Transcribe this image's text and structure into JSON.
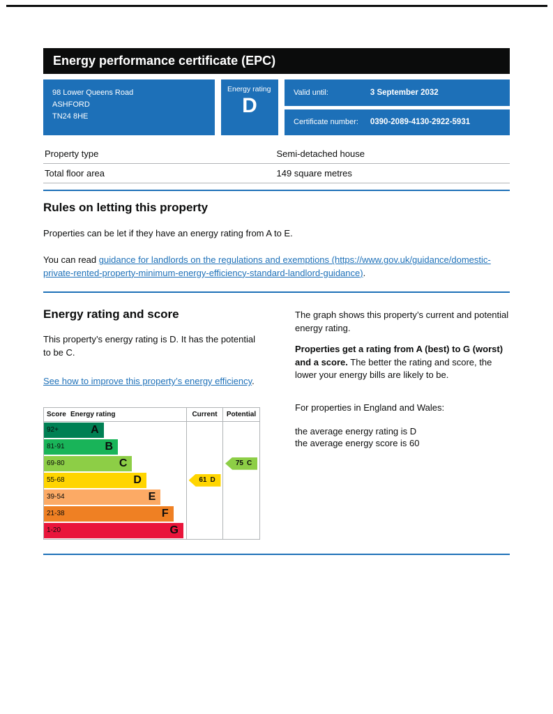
{
  "colors": {
    "brand_blue": "#1d70b8",
    "text_black": "#0b0c0c",
    "border_grey": "#b1b4b6"
  },
  "header": {
    "title": "Energy performance certificate (EPC)"
  },
  "certificate": {
    "address_lines": [
      "98 Lower Queens Road",
      "ASHFORD",
      "TN24 8HE"
    ],
    "energy_rating_label": "Energy rating",
    "energy_rating": "D",
    "valid_until_label": "Valid until:",
    "valid_until_value": "3 September 2032",
    "certificate_number_label": "Certificate number:",
    "certificate_number_value": "0390-2089-4130-2922-5931"
  },
  "summary": {
    "rows": [
      {
        "label": "Property type",
        "value": "Semi-detached house"
      },
      {
        "label": "Total floor area",
        "value": "149 square metres"
      }
    ]
  },
  "rules": {
    "heading": "Rules on letting this property",
    "paragraph1": "Properties can be let if they have an energy rating from A to E.",
    "paragraph2_prefix": "You can read ",
    "paragraph2_link": "guidance for landlords on the regulations and exemptions (https://www.gov.uk/guidance/domestic-private-rented-property-minimum-energy-efficiency-standard-landlord-guidance)",
    "paragraph2_suffix": "."
  },
  "rating_section": {
    "heading": "Energy rating and score",
    "paragraph1": "This property’s energy rating is D. It has the potential to be C.",
    "improve_link": "See how to improve this property’s energy efficiency",
    "improve_link_suffix": ".",
    "graph_intro": "The graph shows this property’s current and potential energy rating.",
    "explain_bold": "Properties get a rating from A (best) to G (worst) and a score.",
    "explain_rest": " The better the rating and score, the lower your energy bills are likely to be.",
    "england_wales_intro": "For properties in England and Wales:",
    "average_rating_line": "the average energy rating is D",
    "average_score_line": "the average energy score is 60"
  },
  "chart_data": {
    "type": "epc-rating-bands",
    "columns": {
      "score": "Score",
      "rating": "Energy rating",
      "current": "Current",
      "potential": "Potential"
    },
    "bands": [
      {
        "score": "92+",
        "letter": "A",
        "color": "#008054",
        "width_pct": 42
      },
      {
        "score": "81-91",
        "letter": "B",
        "color": "#19b459",
        "width_pct": 52
      },
      {
        "score": "69-80",
        "letter": "C",
        "color": "#8dce46",
        "width_pct": 62
      },
      {
        "score": "55-68",
        "letter": "D",
        "color": "#ffd500",
        "width_pct": 72
      },
      {
        "score": "39-54",
        "letter": "E",
        "color": "#fcaa65",
        "width_pct": 82
      },
      {
        "score": "21-38",
        "letter": "F",
        "color": "#ef8023",
        "width_pct": 91
      },
      {
        "score": "1-20",
        "letter": "G",
        "color": "#e9153b",
        "width_pct": 98
      }
    ],
    "current": {
      "score": 61,
      "letter": "D",
      "band_index": 3,
      "color": "#ffd500"
    },
    "potential": {
      "score": 75,
      "letter": "C",
      "band_index": 2,
      "color": "#8dce46"
    }
  }
}
